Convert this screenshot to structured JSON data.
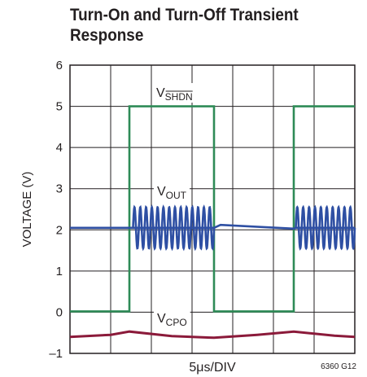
{
  "chart_data": {
    "type": "line",
    "title_lines": [
      "Turn-On and Turn-Off Transient",
      "Response"
    ],
    "ylabel": "VOLTAGE (V)",
    "xlabel": "5μs/DIV",
    "figure_id": "6360 G12",
    "ylim": [
      -1,
      6
    ],
    "yticks": [
      "6",
      "5",
      "4",
      "3",
      "2",
      "1",
      "0",
      "–1"
    ],
    "x_divisions": 7,
    "grid": true,
    "series": [
      {
        "name": "VSHDN",
        "label_main": "V",
        "label_sub": "SHDN",
        "label_overline": true,
        "color": "#2e8b57",
        "x": [
          0,
          1.46,
          1.46,
          3.54,
          3.54,
          5.5,
          5.5,
          7.0
        ],
        "y": [
          0.02,
          0.02,
          5.0,
          5.0,
          0.02,
          0.02,
          5.0,
          5.0
        ]
      },
      {
        "name": "VOUT",
        "label_main": "V",
        "label_sub": "OUT",
        "color": "#2e4fa3",
        "baseline": [
          {
            "x": 0,
            "y": 2.05
          },
          {
            "x": 1.55,
            "y": 2.05
          },
          {
            "x": 3.54,
            "y": 2.05
          },
          {
            "x": 3.7,
            "y": 2.12
          },
          {
            "x": 5.5,
            "y": 2.03
          },
          {
            "x": 5.55,
            "y": 2.05
          },
          {
            "x": 7.0,
            "y": 2.05
          }
        ],
        "ripple": [
          {
            "x_start": 1.55,
            "x_end": 3.54,
            "center": 2.05,
            "amplitude": 0.5,
            "cycles": 14
          },
          {
            "x_start": 5.55,
            "x_end": 7.0,
            "center": 2.05,
            "amplitude": 0.5,
            "cycles": 10
          }
        ]
      },
      {
        "name": "VCPO",
        "label_main": "V",
        "label_sub": "CPO",
        "color": "#8b1a3a",
        "x": [
          0,
          1.0,
          1.46,
          2.5,
          3.54,
          4.6,
          5.5,
          6.5,
          7.0
        ],
        "y": [
          -0.6,
          -0.55,
          -0.47,
          -0.58,
          -0.62,
          -0.55,
          -0.47,
          -0.57,
          -0.6
        ]
      }
    ]
  }
}
